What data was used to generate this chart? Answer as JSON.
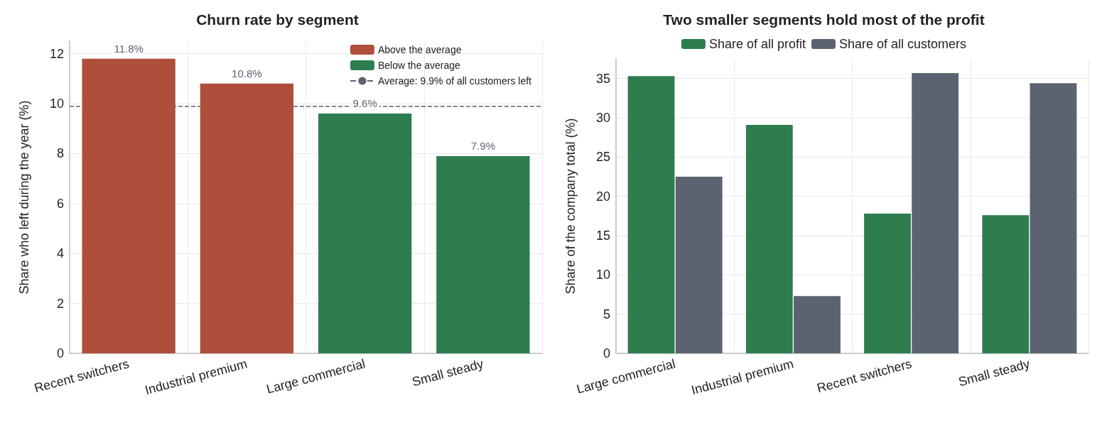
{
  "chart_data": [
    {
      "type": "bar",
      "title": "Churn rate by segment",
      "ylabel": "Share who left during the year (%)",
      "categories": [
        "Recent switchers",
        "Industrial premium",
        "Large commercial",
        "Small steady"
      ],
      "stacked": true,
      "series": [
        {
          "name": "Above the average",
          "color": "#b04e3c",
          "values": [
            11.8,
            10.8,
            null,
            null
          ]
        },
        {
          "name": "Below the average",
          "color": "#2e7d4f",
          "values": [
            null,
            null,
            9.6,
            7.9
          ]
        }
      ],
      "value_labels": [
        "11.8%",
        "10.8%",
        "9.6%",
        "7.9%"
      ],
      "ref_lines": [
        {
          "axis": "y",
          "value": 9.9,
          "label": "Average: 9.9% of all customers left",
          "color": "#5c6370",
          "line_style": "dashed"
        }
      ],
      "ylim": [
        0,
        12.5
      ],
      "yticks": [
        0,
        2,
        4,
        6,
        8,
        10,
        12
      ],
      "grid": true,
      "legend": "top right"
    },
    {
      "type": "bar",
      "title": "Two smaller segments hold most of the profit",
      "ylabel": "Share of the company total (%)",
      "categories": [
        "Large commercial",
        "Industrial premium",
        "Recent switchers",
        "Small steady"
      ],
      "series": [
        {
          "name": "Share of all profit",
          "color": "#2e7d4f",
          "values": [
            35.3,
            29.1,
            17.8,
            17.6
          ]
        },
        {
          "name": "Share of all customers",
          "color": "#5c6370",
          "values": [
            22.5,
            7.3,
            35.7,
            34.4
          ]
        }
      ],
      "ylim": [
        0,
        37.5
      ],
      "yticks": [
        0,
        5,
        10,
        15,
        20,
        25,
        30,
        35
      ],
      "grid": true,
      "legend": "top"
    }
  ]
}
